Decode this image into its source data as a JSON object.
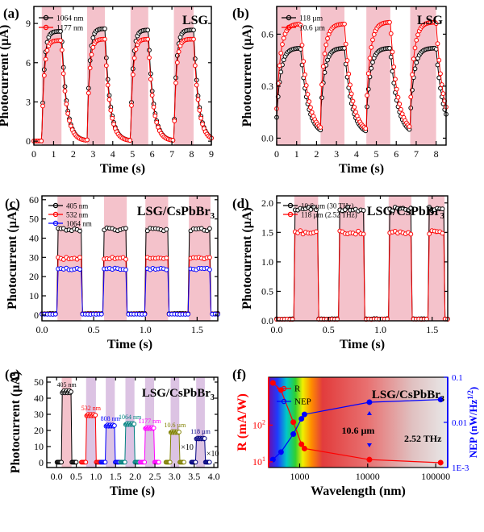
{
  "colors": {
    "black": "#000000",
    "red": "#ff0000",
    "blue": "#0000ff",
    "pink_band": "#f4c2cb",
    "violet_band": "#dcc3e3",
    "magenta": "#ff00ff",
    "teal": "#008080",
    "olive": "#808000",
    "darkblue": "#000080",
    "purple": "#800080",
    "spectrum_red": "#e23c3c"
  },
  "chart_data": [
    {
      "id": "a",
      "type": "line",
      "panel_label": "(a)",
      "title": "LSG",
      "xlabel": "Time (s)",
      "ylabel": "Photocurrent (µA)",
      "xlim": [
        0,
        9
      ],
      "ylim": [
        -0.3,
        10.3
      ],
      "xticks": [
        0,
        1,
        2,
        3,
        4,
        5,
        6,
        7,
        8,
        9
      ],
      "yticks": [
        0,
        3,
        6,
        9
      ],
      "on_intervals": [
        [
          0.4,
          1.4
        ],
        [
          2.7,
          3.6
        ],
        [
          4.9,
          5.8
        ],
        [
          7.1,
          8.1
        ]
      ],
      "legend_position": "top-left",
      "series": [
        {
          "name": "1064 nm",
          "color": "#000000",
          "peaks": [
            8.4,
            8.6,
            8.5,
            8.5
          ],
          "base": 0.1
        },
        {
          "name": "1177 nm",
          "color": "#ff0000",
          "peaks": [
            7.7,
            7.8,
            7.8,
            7.8
          ],
          "base": 0.1
        }
      ]
    },
    {
      "id": "b",
      "type": "line",
      "panel_label": "(b)",
      "title": "LSG",
      "xlabel": "Time (s)",
      "ylabel": "Photocurrent (µA)",
      "xlim": [
        0,
        8.5
      ],
      "ylim": [
        -0.04,
        0.76
      ],
      "xticks": [
        0,
        1,
        2,
        3,
        4,
        5,
        6,
        7,
        8
      ],
      "yticks": [
        "0.0",
        "0.3",
        "0.6"
      ],
      "on_intervals": [
        [
          0.0,
          1.2
        ],
        [
          2.2,
          3.4
        ],
        [
          4.5,
          5.7
        ],
        [
          6.7,
          8.0
        ]
      ],
      "legend_position": "top-left",
      "series": [
        {
          "name": "118 µm",
          "color": "#000000",
          "peaks": [
            0.52,
            0.52,
            0.52,
            0.52
          ],
          "base": 0.12
        },
        {
          "name": "10.6 µm",
          "color": "#ff0000",
          "peaks": [
            0.66,
            0.66,
            0.67,
            0.67
          ],
          "base": 0.17
        }
      ]
    },
    {
      "id": "c",
      "type": "line",
      "panel_label": "(c)",
      "title": "LSG/CsPbBr3",
      "xlabel": "Time (s)",
      "ylabel": "Photocurrent (µA)",
      "xlim": [
        0,
        1.7
      ],
      "ylim": [
        -3,
        62
      ],
      "xticks": [
        "0.0",
        "0.5",
        "1.0",
        "1.5"
      ],
      "yticks": [
        0,
        10,
        20,
        30,
        40,
        50,
        60
      ],
      "on_intervals": [
        [
          0.15,
          0.38
        ],
        [
          0.6,
          0.82
        ],
        [
          1.0,
          1.22
        ],
        [
          1.42,
          1.63
        ]
      ],
      "legend_position": "top-left",
      "series": [
        {
          "name": "405 nm",
          "color": "#000000",
          "level": 44.5
        },
        {
          "name": "532 nm",
          "color": "#ff0000",
          "level": 29.5
        },
        {
          "name": "1064 nm",
          "color": "#0000ff",
          "level": 24
        }
      ]
    },
    {
      "id": "d",
      "type": "line",
      "panel_label": "(d)",
      "title": "LSG/CsPbBr3",
      "xlabel": "Time (s)",
      "ylabel": "Photocurrent (µA)",
      "xlim": [
        0,
        1.65
      ],
      "ylim": [
        0,
        2.12
      ],
      "xticks": [
        "0.0",
        "0.5",
        "1.0",
        "1.5"
      ],
      "yticks": [
        "0.0",
        "0.5",
        "1.0",
        "1.5",
        "2.0"
      ],
      "on_intervals": [
        [
          0.17,
          0.4
        ],
        [
          0.6,
          0.85
        ],
        [
          1.08,
          1.3
        ],
        [
          1.46,
          1.62
        ]
      ],
      "legend_position": "top-left",
      "series": [
        {
          "name": "10.6 µm (30 THz)",
          "color": "#000000",
          "level": 1.9
        },
        {
          "name": "118 µm (2.52 THz)",
          "color": "#ff0000",
          "level": 1.5
        }
      ]
    },
    {
      "id": "e",
      "type": "line",
      "panel_label": "(e)",
      "title": "LSG/CsPbBr3",
      "xlabel": "Time (s)",
      "ylabel": "Photocurrent (µA)",
      "xlim": [
        -0.25,
        4.1
      ],
      "ylim": [
        -3,
        53
      ],
      "xticks": [
        "0.0",
        "0.5",
        "1.0",
        "1.5",
        "2.0",
        "2.5",
        "3.0",
        "3.5",
        "4.0"
      ],
      "yticks": [
        0,
        10,
        20,
        30,
        40,
        50
      ],
      "annotations": [
        "×10",
        "×10"
      ],
      "series": [
        {
          "name": "405 nm",
          "color": "#000000",
          "band_color": "#f4c2cb",
          "on": [
            0.13,
            0.38
          ],
          "level": 44
        },
        {
          "name": "532 nm",
          "color": "#ff0000",
          "band_color": "#dcc3e3",
          "on": [
            0.75,
            1.0
          ],
          "level": 29.5
        },
        {
          "name": "808 nm",
          "color": "#0000ff",
          "band_color": "#dcc3e3",
          "on": [
            1.25,
            1.48
          ],
          "level": 23
        },
        {
          "name": "1064 nm",
          "color": "#008080",
          "band_color": "#dcc3e3",
          "on": [
            1.75,
            1.98
          ],
          "level": 24
        },
        {
          "name": "1177 nm",
          "color": "#ff00ff",
          "band_color": "#dcc3e3",
          "on": [
            2.25,
            2.48
          ],
          "level": 21.5
        },
        {
          "name": "10.6 µm",
          "color": "#808000",
          "band_color": "#dcc3e3",
          "on": [
            2.9,
            3.12
          ],
          "level": 19
        },
        {
          "name": "118 µm",
          "color": "#000080",
          "band_color": "#dcc3e3",
          "on": [
            3.55,
            3.77
          ],
          "level": 15
        }
      ]
    },
    {
      "id": "f",
      "type": "line",
      "panel_label": "(f)",
      "title": "LSG/CsPbBr3",
      "xlabel": "Wavelength (nm)",
      "ylabel_left": "R (mA/W)",
      "ylabel_right": "NEP (nW/Hz1/2)",
      "x_scale": "log",
      "y_scale": "log",
      "xlim": [
        350,
        150000
      ],
      "ylim_left": [
        7,
        2000
      ],
      "ylim_right": [
        0.001,
        0.1
      ],
      "xticks": [
        1000,
        10000,
        100000
      ],
      "xticklabels": [
        "1000",
        "10000",
        "100000"
      ],
      "yticks_left_labels": [
        "10",
        "10"
      ],
      "yticks_left_superscripts": [
        "1",
        "2"
      ],
      "yticks_right_labels": [
        "1E-3",
        "0.01",
        "0.1"
      ],
      "legend_position": "top-left",
      "annotations": [
        "10.6 µm",
        "2.52 THz"
      ],
      "series": [
        {
          "name": "R",
          "color": "#ff0000",
          "axis": "left",
          "x": [
            405,
            532,
            808,
            1064,
            1177,
            10600,
            118000
          ],
          "y": [
            1400,
            900,
            120,
            30,
            23,
            11.5,
            9.5
          ]
        },
        {
          "name": "NEP",
          "color": "#0000ff",
          "axis": "right",
          "x": [
            405,
            532,
            808,
            1064,
            1177,
            10600,
            118000
          ],
          "y": [
            0.0015,
            0.0022,
            0.0055,
            0.012,
            0.015,
            0.028,
            0.032
          ]
        }
      ]
    }
  ]
}
